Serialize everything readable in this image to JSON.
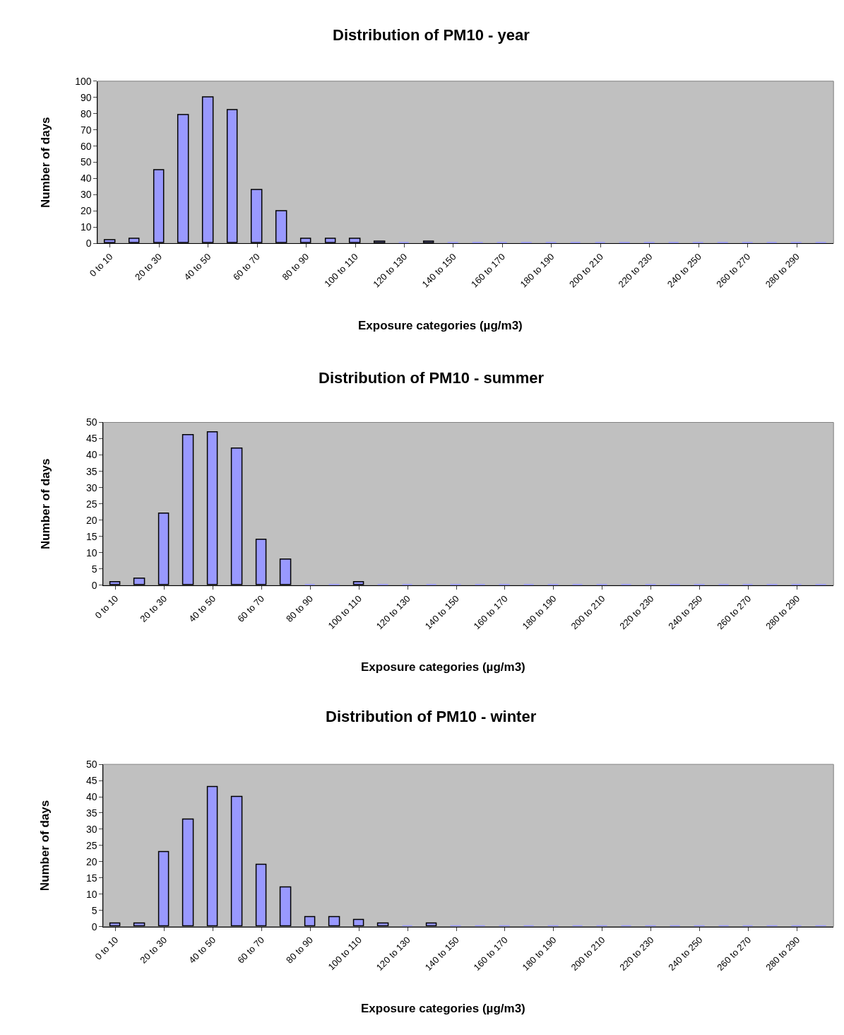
{
  "chart_data": [
    {
      "type": "bar",
      "title": "Distribution of PM10 - year",
      "xlabel": "Exposure categories (µg/m3)",
      "ylabel": "Number of days",
      "categories": [
        "0 to 10",
        null,
        "20 to 30",
        null,
        "40 to 50",
        null,
        "60 to 70",
        null,
        "80 to 90",
        null,
        "100 to 110",
        null,
        "120 to 130",
        null,
        "140 to 150",
        null,
        "160 to 170",
        null,
        "180 to 190",
        null,
        "200 to 210",
        null,
        "220 to 230",
        null,
        "240 to 250",
        null,
        "260 to 270",
        null,
        "280 to 290",
        null
      ],
      "values": [
        2,
        3,
        45,
        79,
        90,
        82,
        33,
        20,
        3,
        3,
        3,
        1,
        0,
        1,
        0,
        0,
        0,
        0,
        0,
        0,
        0,
        0,
        0,
        0,
        0,
        0,
        0,
        0,
        0,
        0
      ],
      "color": "#9999ff",
      "ylim": [
        0,
        100
      ],
      "yticks": [
        0,
        10,
        20,
        30,
        40,
        50,
        60,
        70,
        80,
        90,
        100
      ]
    },
    {
      "type": "bar",
      "title": "Distribution of PM10 - summer",
      "xlabel": "Exposure categories (µg/m3)",
      "ylabel": "Number of days",
      "categories": [
        "0 to 10",
        null,
        "20 to 30",
        null,
        "40 to 50",
        null,
        "60 to 70",
        null,
        "80 to 90",
        null,
        "100 to 110",
        null,
        "120 to 130",
        null,
        "140 to 150",
        null,
        "160 to 170",
        null,
        "180 to 190",
        null,
        "200 to 210",
        null,
        "220 to 230",
        null,
        "240 to 250",
        null,
        "260 to 270",
        null,
        "280 to 290",
        null
      ],
      "values": [
        1,
        2,
        22,
        46,
        47,
        42,
        14,
        8,
        0,
        0,
        1,
        0,
        0,
        0,
        0,
        0,
        0,
        0,
        0,
        0,
        0,
        0,
        0,
        0,
        0,
        0,
        0,
        0,
        0,
        0
      ],
      "color": "#9999ff",
      "ylim": [
        0,
        50
      ],
      "yticks": [
        0,
        5,
        10,
        15,
        20,
        25,
        30,
        35,
        40,
        45,
        50
      ]
    },
    {
      "type": "bar",
      "title": "Distribution of PM10 - winter",
      "xlabel": "Exposure categories (µg/m3)",
      "ylabel": "Number of days",
      "categories": [
        "0 to 10",
        null,
        "20 to 30",
        null,
        "40 to 50",
        null,
        "60 to 70",
        null,
        "80 to 90",
        null,
        "100 to 110",
        null,
        "120 to 130",
        null,
        "140 to 150",
        null,
        "160 to 170",
        null,
        "180 to 190",
        null,
        "200 to 210",
        null,
        "220 to 230",
        null,
        "240 to 250",
        null,
        "260 to 270",
        null,
        "280 to 290",
        null
      ],
      "values": [
        1,
        1,
        23,
        33,
        43,
        40,
        19,
        12,
        3,
        3,
        2,
        1,
        0,
        1,
        0,
        0,
        0,
        0,
        0,
        0,
        0,
        0,
        0,
        0,
        0,
        0,
        0,
        0,
        0,
        0
      ],
      "color": "#9999ff",
      "ylim": [
        0,
        50
      ],
      "yticks": [
        0,
        5,
        10,
        15,
        20,
        25,
        30,
        35,
        40,
        45,
        50
      ]
    }
  ]
}
